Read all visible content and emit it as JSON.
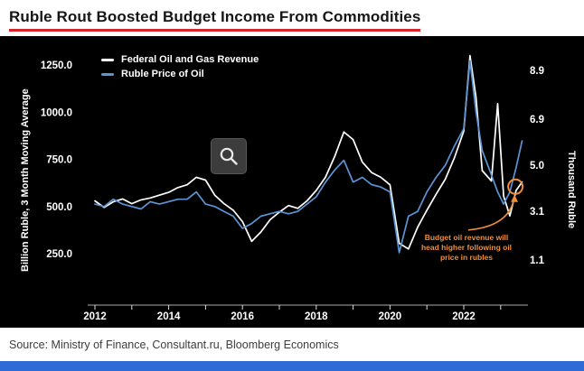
{
  "header": {
    "title": "Ruble Rout Boosted Budget Income From Commodities"
  },
  "footer": {
    "source": "Source: Ministry of Finance, Consultant.ru, Bloomberg Economics"
  },
  "colors": {
    "accent_red": "#d8232a",
    "blue_series": "#5d94d6",
    "white_series": "#ffffff",
    "annotation_orange": "#ee8f3a",
    "bottom_bar_blue": "#2e6bd6"
  },
  "chart_data": {
    "type": "line",
    "title": "Ruble Rout Boosted Budget Income From Commodities",
    "legend": [
      {
        "label": "Federal Oil and Gas Revenue",
        "color": "#ffffff"
      },
      {
        "label": "Ruble Price of Oil",
        "color": "#5d94d6"
      }
    ],
    "left_axis": {
      "label": "Billion Ruble, 3 Month Moving Average",
      "ticks": [
        250,
        500,
        750,
        1000,
        1250
      ],
      "tick_labels": [
        "250.0",
        "500.0",
        "750.0",
        "1000.0",
        "1250.0"
      ]
    },
    "right_axis": {
      "label": "Thousand Ruble",
      "ticks": [
        1.1,
        3.1,
        5.0,
        6.9,
        8.9
      ],
      "tick_labels": [
        "1.1",
        "3.1",
        "5.0",
        "6.9",
        "8.9"
      ]
    },
    "x_axis": {
      "ticks": [
        2012,
        2013,
        2014,
        2015,
        2016,
        2017,
        2018,
        2019,
        2020,
        2021,
        2022,
        2023
      ],
      "labels": [
        "2012",
        "2014",
        "2016",
        "2018",
        "2020",
        "2022"
      ],
      "label_positions": [
        2012,
        2014,
        2016,
        2018,
        2020,
        2022
      ]
    },
    "x": [
      2012.0,
      2012.25,
      2012.5,
      2012.75,
      2013.0,
      2013.25,
      2013.5,
      2013.75,
      2014.0,
      2014.25,
      2014.5,
      2014.75,
      2015.0,
      2015.25,
      2015.5,
      2015.75,
      2016.0,
      2016.25,
      2016.5,
      2016.75,
      2017.0,
      2017.25,
      2017.5,
      2017.75,
      2018.0,
      2018.25,
      2018.5,
      2018.75,
      2019.0,
      2019.25,
      2019.5,
      2019.75,
      2020.0,
      2020.25,
      2020.5,
      2020.75,
      2021.0,
      2021.25,
      2021.5,
      2021.75,
      2022.0,
      2022.17,
      2022.33,
      2022.5,
      2022.75,
      2022.92,
      2023.08,
      2023.25,
      2023.42,
      2023.58
    ],
    "series": [
      {
        "name": "Federal Oil and Gas Revenue",
        "axis": "left",
        "color": "#ffffff",
        "values": [
          530,
          495,
          525,
          540,
          515,
          535,
          545,
          560,
          575,
          600,
          615,
          655,
          640,
          560,
          515,
          480,
          420,
          315,
          365,
          430,
          470,
          505,
          490,
          530,
          585,
          655,
          765,
          895,
          855,
          735,
          680,
          655,
          615,
          305,
          275,
          390,
          480,
          565,
          645,
          760,
          900,
          1300,
          1080,
          690,
          635,
          1045,
          555,
          450,
          585,
          630
        ]
      },
      {
        "name": "Ruble Price of Oil",
        "axis": "right",
        "color": "#5d94d6",
        "values": [
          3.4,
          3.3,
          3.6,
          3.4,
          3.3,
          3.2,
          3.5,
          3.4,
          3.5,
          3.6,
          3.6,
          3.9,
          3.4,
          3.3,
          3.1,
          2.9,
          2.4,
          2.6,
          2.9,
          3.0,
          3.1,
          3.0,
          3.1,
          3.4,
          3.7,
          4.3,
          4.8,
          5.2,
          4.3,
          4.5,
          4.2,
          4.1,
          3.9,
          1.4,
          2.9,
          3.1,
          3.9,
          4.5,
          5.0,
          5.8,
          6.5,
          9.3,
          7.2,
          5.6,
          4.6,
          3.9,
          3.4,
          3.9,
          4.9,
          6.0
        ]
      }
    ],
    "annotation": {
      "text": "Budget oil revenue will head higher following oil price in rubles",
      "color": "#ee8f3a",
      "target_x": 2023.4,
      "target_value_left": 605
    }
  }
}
